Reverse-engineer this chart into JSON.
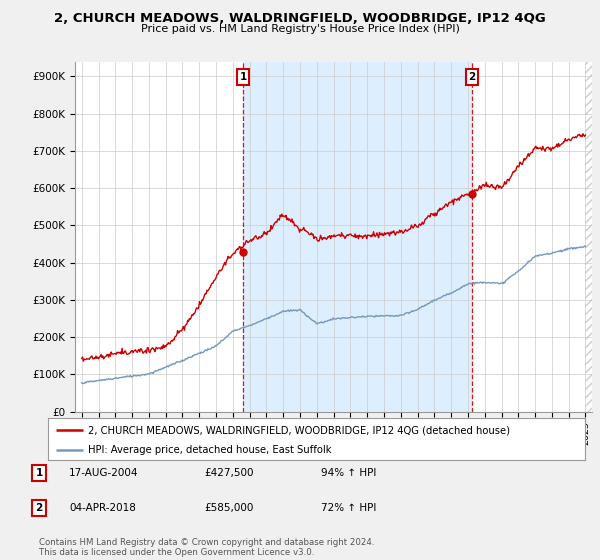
{
  "title": "2, CHURCH MEADOWS, WALDRINGFIELD, WOODBRIDGE, IP12 4QG",
  "subtitle": "Price paid vs. HM Land Registry's House Price Index (HPI)",
  "ylabel_ticks": [
    "£0",
    "£100K",
    "£200K",
    "£300K",
    "£400K",
    "£500K",
    "£600K",
    "£700K",
    "£800K",
    "£900K"
  ],
  "ytick_values": [
    0,
    100000,
    200000,
    300000,
    400000,
    500000,
    600000,
    700000,
    800000,
    900000
  ],
  "ylim": [
    0,
    940000
  ],
  "xlim_start": 1994.6,
  "xlim_end": 2025.4,
  "sale1_year": 2004.62,
  "sale1_price": 427500,
  "sale1_label": "1",
  "sale2_year": 2018.25,
  "sale2_price": 585000,
  "sale2_label": "2",
  "legend_line1": "2, CHURCH MEADOWS, WALDRINGFIELD, WOODBRIDGE, IP12 4QG (detached house)",
  "legend_line2": "HPI: Average price, detached house, East Suffolk",
  "footnote": "Contains HM Land Registry data © Crown copyright and database right 2024.\nThis data is licensed under the Open Government Licence v3.0.",
  "table_row1": [
    "1",
    "17-AUG-2004",
    "£427,500",
    "94% ↑ HPI"
  ],
  "table_row2": [
    "2",
    "04-APR-2018",
    "£585,000",
    "72% ↑ HPI"
  ],
  "red_color": "#cc0000",
  "blue_color": "#7799bb",
  "shade_color": "#ddeeff",
  "bg_color": "#f0f0f0",
  "plot_bg": "#ffffff",
  "hatch_color": "#cccccc"
}
